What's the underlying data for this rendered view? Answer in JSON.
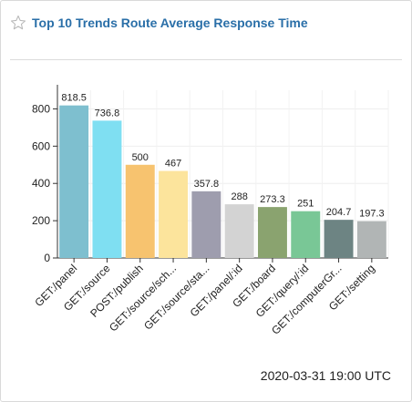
{
  "panel": {
    "title": "Top 10 Trends Route Average Response Time",
    "timestamp": "2020-03-31 19:00 UTC",
    "star_icon": "star-outline-icon"
  },
  "chart_data": {
    "type": "bar",
    "categories": [
      "GET:/panel",
      "GET:/source",
      "POST:/publish",
      "GET:/source/sch...",
      "GET:/source/sta...",
      "GET:/panel/:id",
      "GET:/board",
      "GET:/query/:id",
      "GET:/computerGr...",
      "GET:/setting"
    ],
    "values": [
      818.5,
      736.8,
      500,
      467,
      357.8,
      288,
      273.3,
      251,
      204.7,
      197.3
    ],
    "value_labels": [
      "818.5",
      "736.8",
      "500",
      "467",
      "357.8",
      "288",
      "273.3",
      "251",
      "204.7",
      "197.3"
    ],
    "colors": [
      "#7ebfcf",
      "#7fdff2",
      "#f7c36f",
      "#fce49c",
      "#9e9dae",
      "#d3d3d3",
      "#8aa36f",
      "#79c796",
      "#6d8483",
      "#b1b5b5"
    ],
    "ylim": [
      0,
      900
    ],
    "yticks": [
      0,
      200,
      400,
      600,
      800
    ],
    "grid": true,
    "legend": false
  }
}
